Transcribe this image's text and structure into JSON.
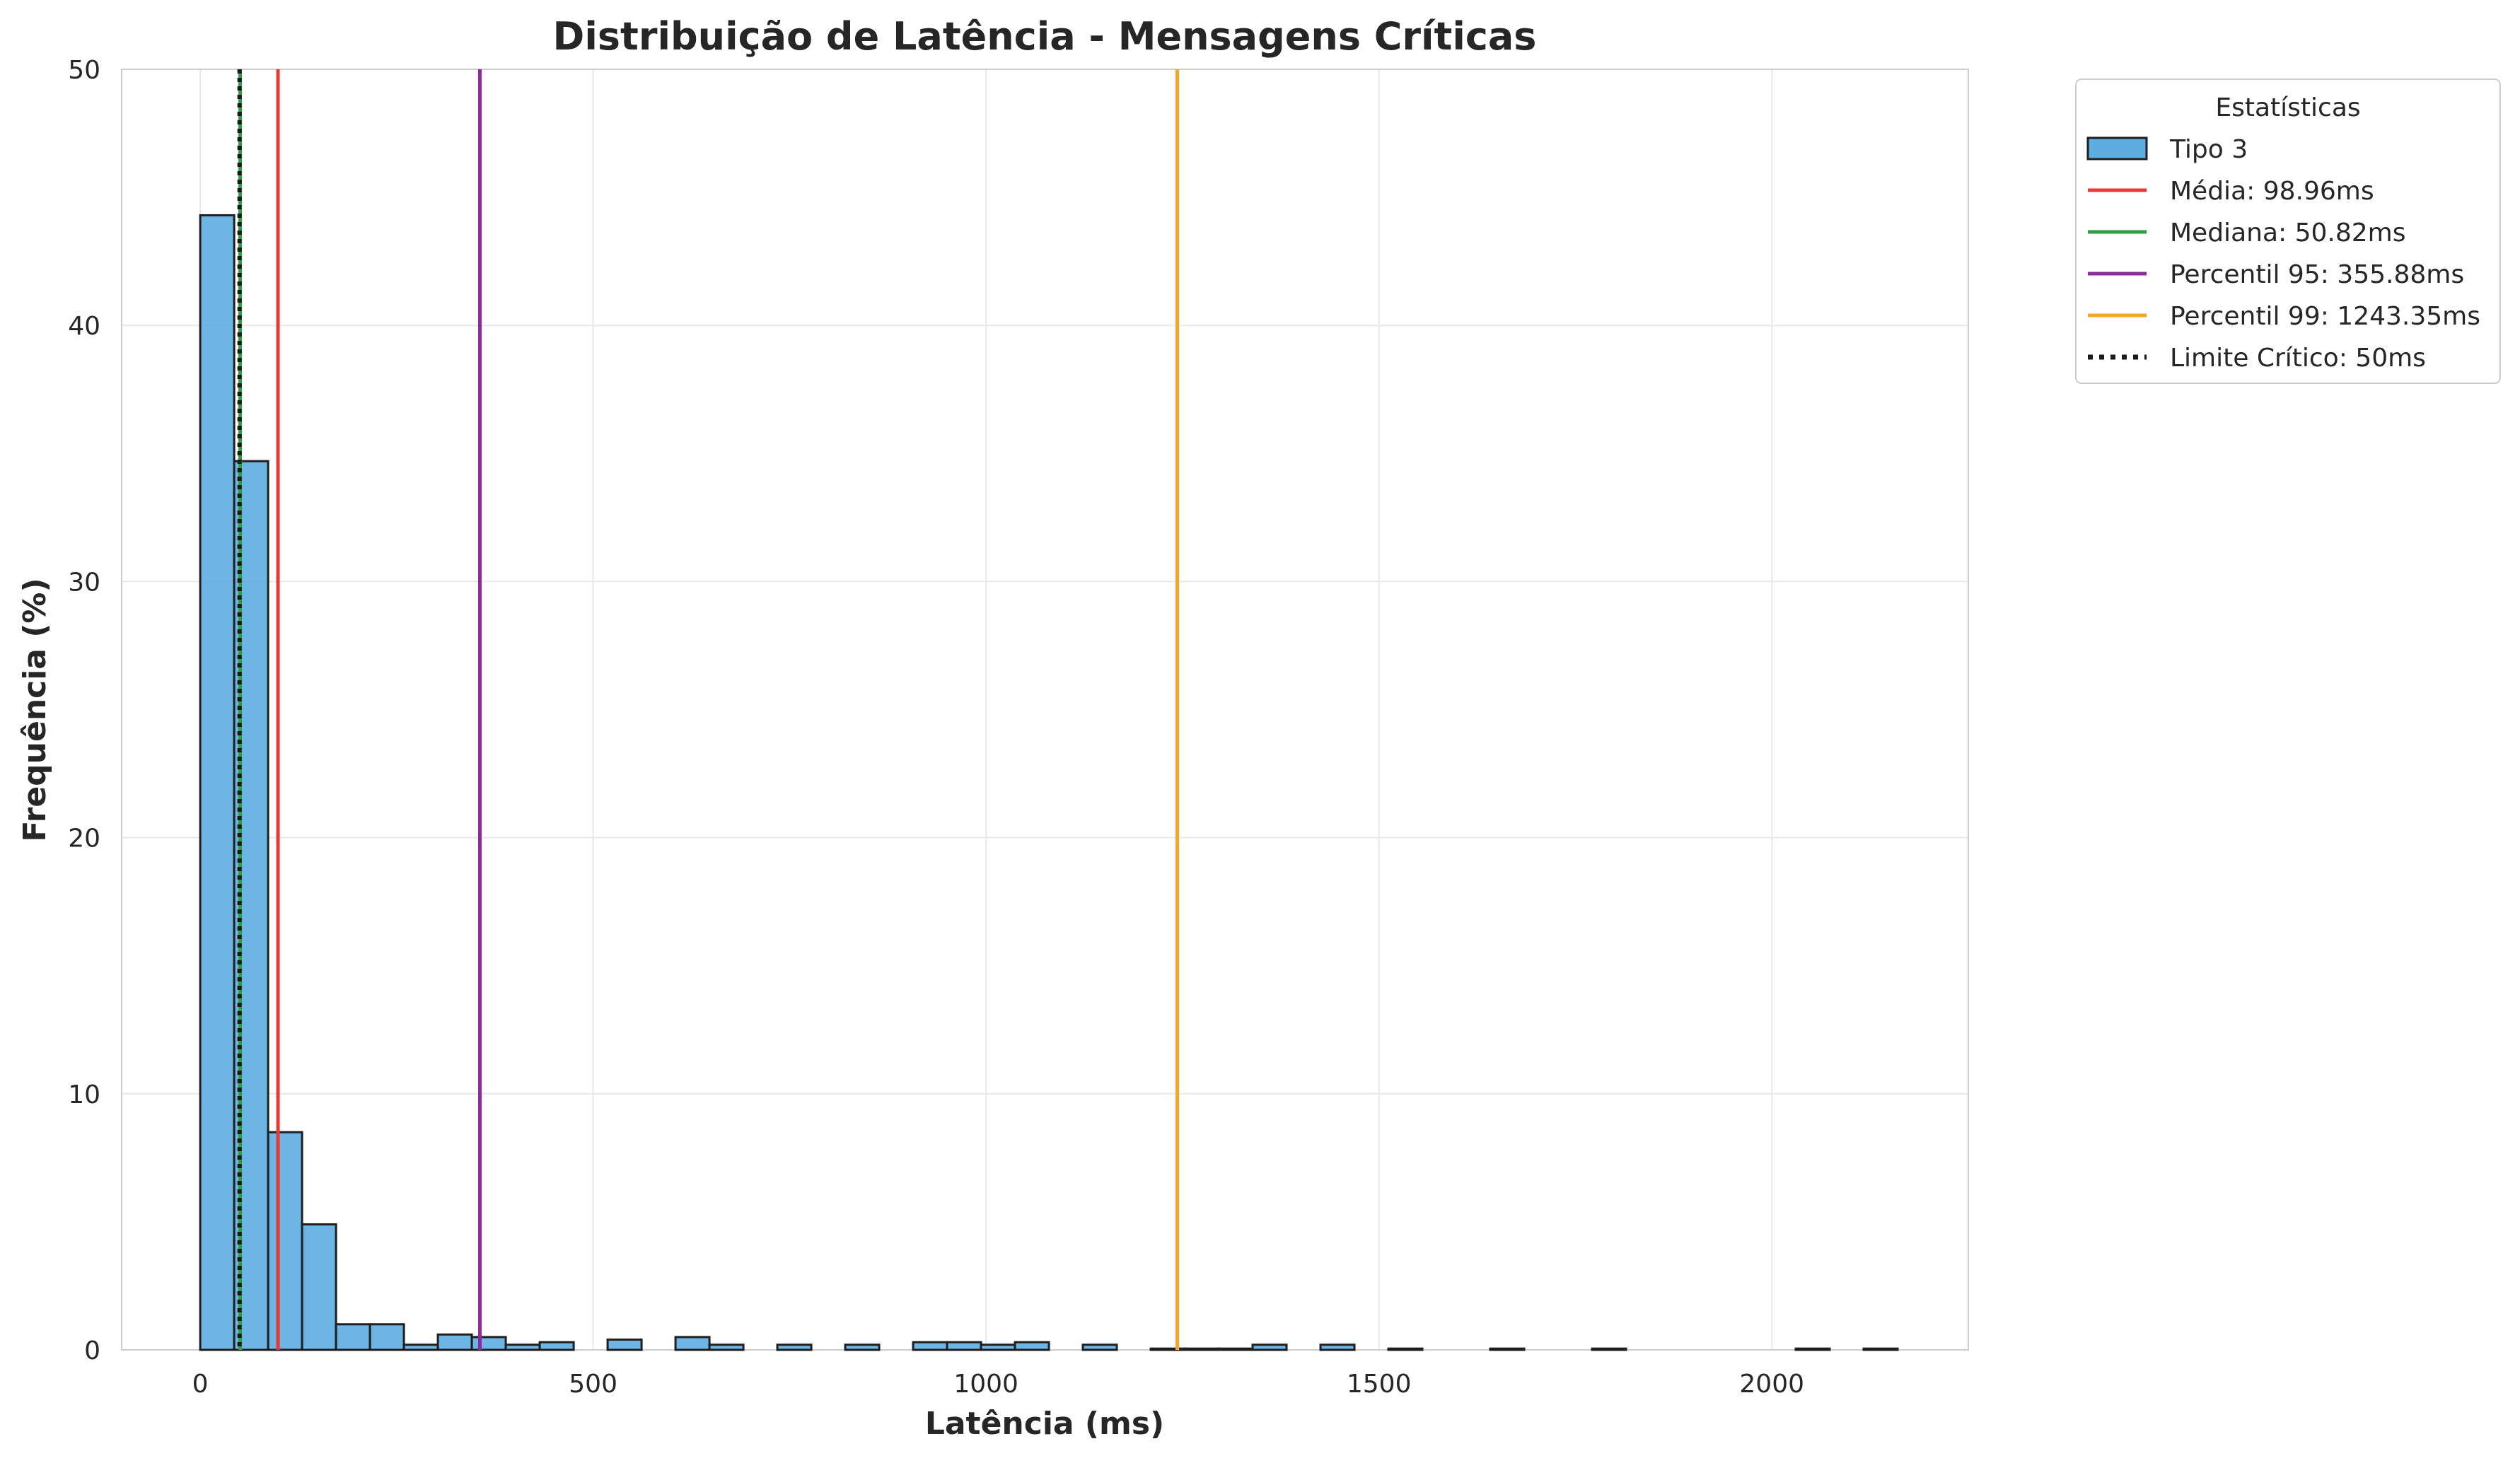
{
  "chart_data": {
    "type": "bar",
    "title": "Distribuição de Latência - Mensagens Críticas",
    "xlabel": "Latência (ms)",
    "ylabel": "Frequência (%)",
    "xlim": [
      -100,
      2250
    ],
    "ylim": [
      0,
      50
    ],
    "xticks": [
      0,
      500,
      1000,
      1500,
      2000
    ],
    "yticks": [
      0,
      10,
      20,
      30,
      40,
      50
    ],
    "grid": true,
    "histogram": {
      "name": "Tipo 3",
      "color": "#5DADE2",
      "edge_color": "#1f1f1f",
      "bin_start": 0,
      "bin_width": 43.2,
      "values": [
        44.3,
        34.7,
        8.5,
        4.9,
        1.0,
        1.0,
        0.2,
        0.6,
        0.5,
        0.2,
        0.3,
        0.0,
        0.4,
        0.0,
        0.5,
        0.2,
        0.0,
        0.2,
        0.0,
        0.2,
        0.0,
        0.3,
        0.3,
        0.2,
        0.3,
        0.0,
        0.2,
        0.0,
        0.05,
        0.05,
        0.05,
        0.2,
        0.0,
        0.2,
        0.0,
        0.05,
        0.0,
        0.0,
        0.05,
        0.0,
        0.0,
        0.05,
        0.0,
        0.0,
        0.0,
        0.0,
        0.0,
        0.05,
        0.0,
        0.05
      ]
    },
    "reference_lines": [
      {
        "label": "Média: 98.96ms",
        "x": 98.96,
        "color": "#E53935",
        "style": "solid"
      },
      {
        "label": "Mediana: 50.82ms",
        "x": 50.82,
        "color": "#2E9E3F",
        "style": "solid"
      },
      {
        "label": "Percentil 95: 355.88ms",
        "x": 355.88,
        "color": "#8E2A9E",
        "style": "solid"
      },
      {
        "label": "Percentil 99: 1243.35ms",
        "x": 1243.35,
        "color": "#F5A623",
        "style": "solid"
      },
      {
        "label": "Limite Crítico: 50ms",
        "x": 50,
        "color": "#1a1a1a",
        "style": "dotted"
      }
    ],
    "legend": {
      "title": "Estatísticas",
      "position": "outside-top-right"
    }
  }
}
